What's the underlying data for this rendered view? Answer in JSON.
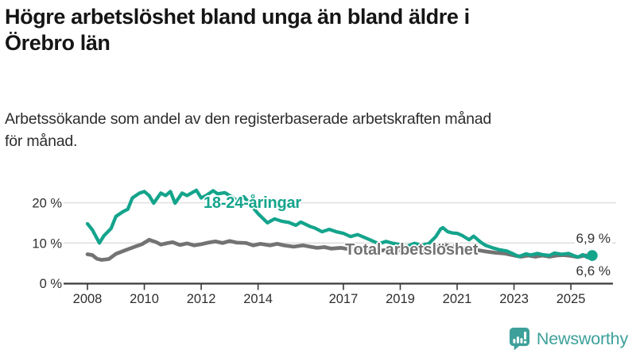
{
  "header": {
    "title_lines": [
      "Högre arbetslöshet bland unga än bland äldre i",
      "Örebro län"
    ],
    "subtitle_lines": [
      "Arbetssökande som andel av den registerbaserade arbetskraften månad",
      "för månad."
    ]
  },
  "chart_data": {
    "type": "line",
    "title": "Högre arbetslöshet bland unga än bland äldre i Örebro län",
    "subtitle": "Arbetssökande som andel av den registerbaserade arbetskraften månad för månad.",
    "unit": "%",
    "x_axis": {
      "tick_values": [
        2008,
        2010,
        2012,
        2014,
        2017,
        2019,
        2021,
        2023,
        2025
      ],
      "tick_labels": [
        "2008",
        "2010",
        "2012",
        "2014",
        "2017",
        "2019",
        "2021",
        "2023",
        "2025"
      ],
      "range": [
        2008.0,
        2025.75
      ]
    },
    "y_axis": {
      "tick_values": [
        0,
        10,
        20
      ],
      "tick_labels": [
        "0 %",
        "10 %",
        "20 %"
      ],
      "range": [
        0,
        24.5
      ]
    },
    "grid": "horizontal",
    "legend": "inline-labels",
    "series": [
      {
        "name": "18-24-åringar",
        "color": "#14a48c",
        "end_value": 6.9,
        "end_label": "6,9 %",
        "end_dot": true,
        "points": [
          [
            2008.0,
            14.8
          ],
          [
            2008.17,
            13.3
          ],
          [
            2008.42,
            10.0
          ],
          [
            2008.58,
            11.8
          ],
          [
            2008.83,
            13.6
          ],
          [
            2009.0,
            16.6
          ],
          [
            2009.25,
            17.8
          ],
          [
            2009.42,
            18.4
          ],
          [
            2009.58,
            21.2
          ],
          [
            2009.83,
            22.4
          ],
          [
            2010.0,
            22.8
          ],
          [
            2010.17,
            21.8
          ],
          [
            2010.33,
            19.9
          ],
          [
            2010.58,
            22.4
          ],
          [
            2010.75,
            21.8
          ],
          [
            2010.92,
            22.8
          ],
          [
            2011.08,
            19.9
          ],
          [
            2011.33,
            22.4
          ],
          [
            2011.5,
            21.8
          ],
          [
            2011.83,
            23.1
          ],
          [
            2012.0,
            21.2
          ],
          [
            2012.17,
            21.8
          ],
          [
            2012.42,
            23.0
          ],
          [
            2012.58,
            22.2
          ],
          [
            2012.83,
            22.5
          ],
          [
            2013.0,
            21.8
          ],
          [
            2013.25,
            20.6
          ],
          [
            2013.5,
            21.5
          ],
          [
            2013.75,
            19.4
          ],
          [
            2014.0,
            17.3
          ],
          [
            2014.33,
            15.0
          ],
          [
            2014.58,
            16.0
          ],
          [
            2014.83,
            15.4
          ],
          [
            2015.08,
            15.1
          ],
          [
            2015.33,
            14.4
          ],
          [
            2015.5,
            15.2
          ],
          [
            2015.83,
            14.1
          ],
          [
            2016.0,
            13.7
          ],
          [
            2016.25,
            12.8
          ],
          [
            2016.5,
            13.4
          ],
          [
            2016.75,
            12.8
          ],
          [
            2017.0,
            12.4
          ],
          [
            2017.25,
            11.6
          ],
          [
            2017.5,
            12.1
          ],
          [
            2017.83,
            11.1
          ],
          [
            2018.0,
            10.6
          ],
          [
            2018.25,
            9.8
          ],
          [
            2018.5,
            10.4
          ],
          [
            2018.75,
            9.9
          ],
          [
            2019.0,
            9.6
          ],
          [
            2019.25,
            9.2
          ],
          [
            2019.5,
            9.9
          ],
          [
            2019.75,
            9.5
          ],
          [
            2020.0,
            9.8
          ],
          [
            2020.25,
            11.6
          ],
          [
            2020.42,
            13.5
          ],
          [
            2020.5,
            13.8
          ],
          [
            2020.67,
            12.8
          ],
          [
            2020.83,
            12.5
          ],
          [
            2021.0,
            12.4
          ],
          [
            2021.17,
            11.9
          ],
          [
            2021.42,
            10.8
          ],
          [
            2021.58,
            11.7
          ],
          [
            2021.83,
            10.2
          ],
          [
            2022.0,
            9.4
          ],
          [
            2022.25,
            8.8
          ],
          [
            2022.5,
            8.3
          ],
          [
            2022.75,
            8.0
          ],
          [
            2023.0,
            7.2
          ],
          [
            2023.17,
            6.6
          ],
          [
            2023.42,
            7.3
          ],
          [
            2023.58,
            7.0
          ],
          [
            2023.83,
            7.4
          ],
          [
            2024.0,
            7.1
          ],
          [
            2024.25,
            6.9
          ],
          [
            2024.42,
            7.5
          ],
          [
            2024.67,
            7.2
          ],
          [
            2024.92,
            7.4
          ],
          [
            2025.08,
            6.9
          ],
          [
            2025.25,
            6.5
          ],
          [
            2025.42,
            7.1
          ],
          [
            2025.58,
            6.4
          ],
          [
            2025.75,
            6.9
          ]
        ]
      },
      {
        "name": "Total arbetslöshet",
        "color": "#737373",
        "end_value": 6.6,
        "end_label": "6,6 %",
        "end_dot": true,
        "points": [
          [
            2008.0,
            7.2
          ],
          [
            2008.17,
            7.0
          ],
          [
            2008.33,
            6.1
          ],
          [
            2008.5,
            5.8
          ],
          [
            2008.75,
            6.0
          ],
          [
            2009.0,
            7.3
          ],
          [
            2009.33,
            8.2
          ],
          [
            2009.67,
            9.1
          ],
          [
            2009.92,
            9.7
          ],
          [
            2010.17,
            10.8
          ],
          [
            2010.42,
            10.2
          ],
          [
            2010.58,
            9.6
          ],
          [
            2010.83,
            10.0
          ],
          [
            2011.0,
            10.2
          ],
          [
            2011.25,
            9.5
          ],
          [
            2011.5,
            9.9
          ],
          [
            2011.75,
            9.4
          ],
          [
            2012.0,
            9.7
          ],
          [
            2012.25,
            10.1
          ],
          [
            2012.5,
            10.4
          ],
          [
            2012.75,
            10.0
          ],
          [
            2013.0,
            10.5
          ],
          [
            2013.25,
            10.1
          ],
          [
            2013.58,
            10.0
          ],
          [
            2013.83,
            9.4
          ],
          [
            2014.08,
            9.8
          ],
          [
            2014.42,
            9.4
          ],
          [
            2014.67,
            9.8
          ],
          [
            2014.92,
            9.4
          ],
          [
            2015.25,
            9.1
          ],
          [
            2015.58,
            9.4
          ],
          [
            2015.83,
            9.1
          ],
          [
            2016.08,
            8.8
          ],
          [
            2016.33,
            9.0
          ],
          [
            2016.58,
            8.6
          ],
          [
            2016.92,
            8.8
          ],
          [
            2017.25,
            8.4
          ],
          [
            2017.58,
            8.7
          ],
          [
            2017.83,
            8.3
          ],
          [
            2018.08,
            8.5
          ],
          [
            2018.33,
            8.1
          ],
          [
            2018.58,
            8.4
          ],
          [
            2018.83,
            8.0
          ],
          [
            2019.08,
            8.2
          ],
          [
            2019.33,
            7.9
          ],
          [
            2019.58,
            8.1
          ],
          [
            2019.83,
            8.0
          ],
          [
            2020.08,
            8.3
          ],
          [
            2020.33,
            9.3
          ],
          [
            2020.5,
            9.6
          ],
          [
            2020.75,
            9.2
          ],
          [
            2021.0,
            9.0
          ],
          [
            2021.25,
            8.7
          ],
          [
            2021.5,
            8.5
          ],
          [
            2021.75,
            8.2
          ],
          [
            2022.0,
            7.9
          ],
          [
            2022.33,
            7.6
          ],
          [
            2022.67,
            7.4
          ],
          [
            2023.0,
            6.9
          ],
          [
            2023.25,
            6.6
          ],
          [
            2023.5,
            6.9
          ],
          [
            2023.75,
            6.6
          ],
          [
            2024.0,
            6.9
          ],
          [
            2024.25,
            6.6
          ],
          [
            2024.5,
            6.9
          ],
          [
            2024.75,
            7.0
          ],
          [
            2025.0,
            6.8
          ],
          [
            2025.25,
            6.5
          ],
          [
            2025.5,
            6.9
          ],
          [
            2025.75,
            6.6
          ]
        ]
      }
    ]
  },
  "footer": {
    "brand": "Newsworthy",
    "brand_color": "#3da09a",
    "logo_icon": "bar-chart-speech-bubble"
  }
}
